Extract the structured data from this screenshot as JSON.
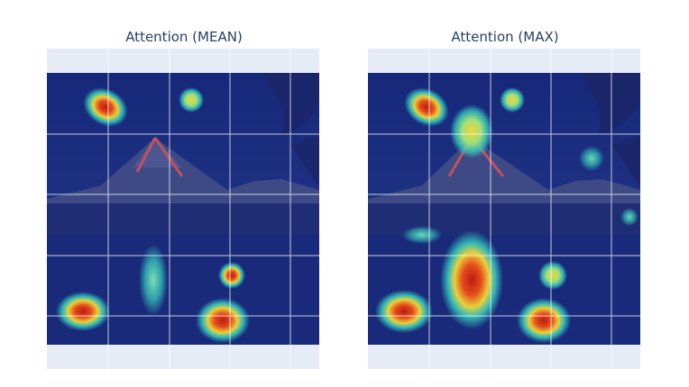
{
  "panels": [
    {
      "id": "mean",
      "title": "Attention (MEAN)"
    },
    {
      "id": "max",
      "title": "Attention (MAX)"
    }
  ],
  "colors": {
    "background": "#e5ecf6",
    "heat_low": "#0d1a6b",
    "heat_mid": "#2fd0c8",
    "heat_high": "#d42a1a"
  }
}
